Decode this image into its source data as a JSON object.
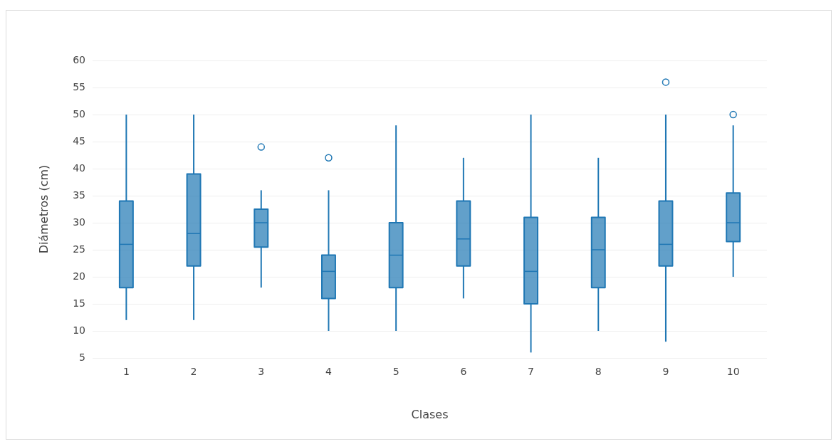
{
  "chart_data": {
    "type": "box",
    "xlabel": "Clases",
    "ylabel": "Diámetros (cm)",
    "categories": [
      "1",
      "2",
      "3",
      "4",
      "5",
      "6",
      "7",
      "8",
      "9",
      "10"
    ],
    "color": "#1f77b4",
    "boxes": [
      {
        "low": 12,
        "q1": 18,
        "median": 26,
        "q3": 34,
        "high": 50
      },
      {
        "low": 12,
        "q1": 22,
        "median": 28,
        "q3": 39,
        "high": 50
      },
      {
        "low": 18,
        "q1": 25.5,
        "median": 30,
        "q3": 32.5,
        "high": 36,
        "outliers": [
          44
        ]
      },
      {
        "low": 10,
        "q1": 16,
        "median": 21,
        "q3": 24,
        "high": 36,
        "outliers": [
          42
        ]
      },
      {
        "low": 10,
        "q1": 18,
        "median": 24,
        "q3": 30,
        "high": 48
      },
      {
        "low": 16,
        "q1": 22,
        "median": 27,
        "q3": 34,
        "high": 42
      },
      {
        "low": 6,
        "q1": 15,
        "median": 21,
        "q3": 31,
        "high": 50
      },
      {
        "low": 10,
        "q1": 18,
        "median": 25,
        "q3": 31,
        "high": 42
      },
      {
        "low": 8,
        "q1": 22,
        "median": 26,
        "q3": 34,
        "high": 50,
        "outliers": [
          56
        ]
      },
      {
        "low": 20,
        "q1": 26.5,
        "median": 30,
        "q3": 35.5,
        "high": 48,
        "outliers": [
          50
        ]
      }
    ],
    "ylim": [
      5,
      60
    ],
    "yticks": [
      5,
      10,
      15,
      20,
      25,
      30,
      35,
      40,
      45,
      50,
      55,
      60
    ],
    "grid": "y",
    "legend": false
  }
}
